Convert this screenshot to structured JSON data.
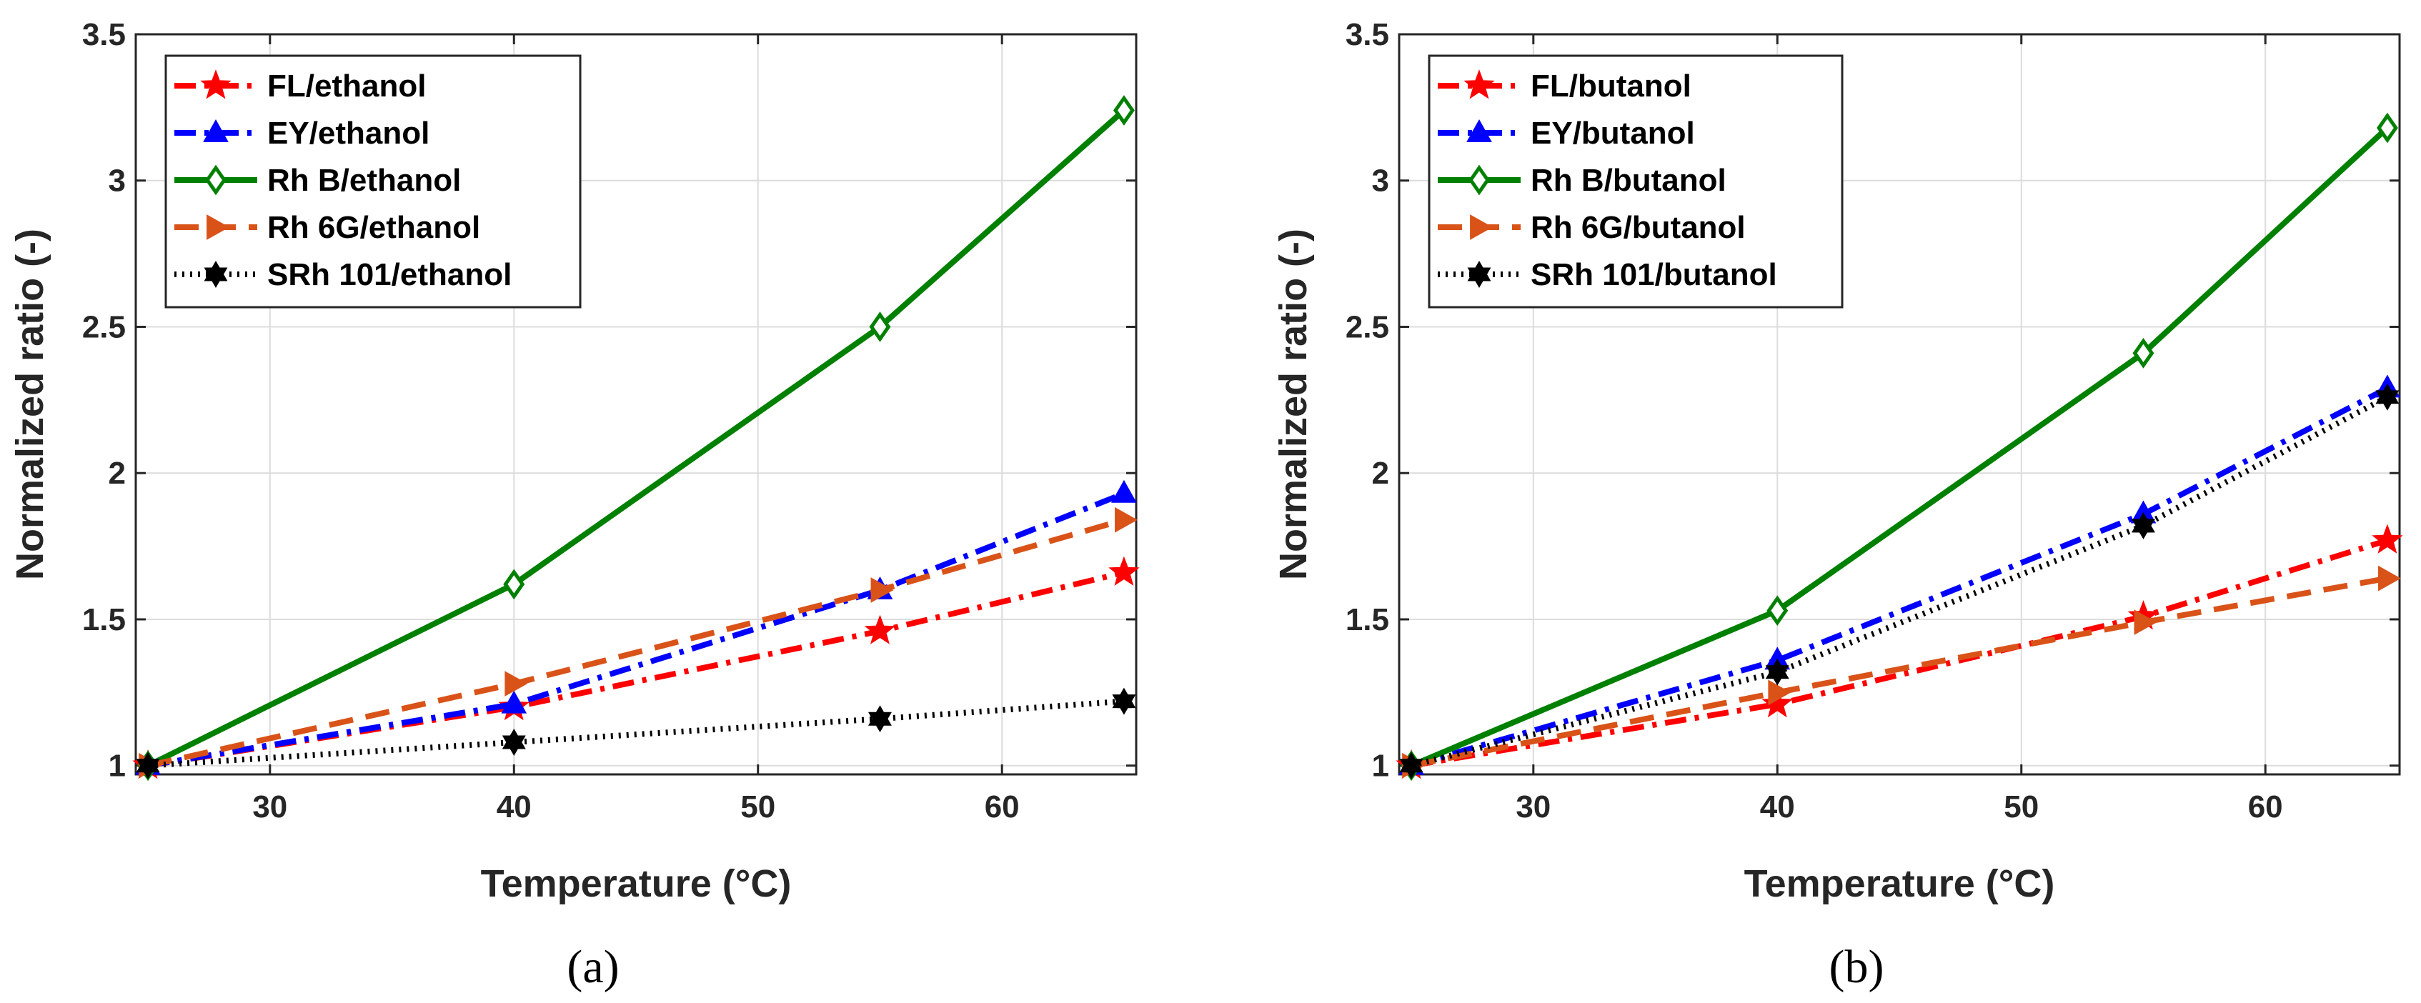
{
  "chart_data": [
    {
      "type": "line",
      "panel_label": "(a)",
      "xlabel": "Temperature (°C)",
      "ylabel": "Normalized ratio (-)",
      "xlim": [
        24.5,
        65.5
      ],
      "ylim": [
        0.97,
        3.5
      ],
      "x_ticks": [
        30,
        40,
        50,
        60
      ],
      "y_ticks": [
        1,
        1.5,
        2,
        2.5,
        3,
        3.5
      ],
      "x_tick_labels": [
        "30",
        "40",
        "50",
        "60"
      ],
      "y_tick_labels": [
        "1",
        "1.5",
        "2",
        "2.5",
        "3",
        "3.5"
      ],
      "grid": true,
      "legend_location": "top-left",
      "x": [
        25,
        40,
        55,
        65
      ],
      "series": [
        {
          "name": "FL/ethanol",
          "values": [
            1.0,
            1.2,
            1.46,
            1.66
          ],
          "color": "#ff0000",
          "dash": "dashdot",
          "marker": "star"
        },
        {
          "name": "EY/ethanol",
          "values": [
            1.0,
            1.21,
            1.6,
            1.93
          ],
          "color": "#0000ff",
          "dash": "dashdot",
          "marker": "triangle-up"
        },
        {
          "name": "Rh B/ethanol",
          "values": [
            1.0,
            1.62,
            2.5,
            3.24
          ],
          "color": "#008000",
          "dash": "solid",
          "marker": "diamond"
        },
        {
          "name": "Rh 6G/ethanol",
          "values": [
            1.0,
            1.28,
            1.6,
            1.84
          ],
          "color": "#d95319",
          "dash": "dashed",
          "marker": "triangle-right"
        },
        {
          "name": "SRh 101/ethanol",
          "values": [
            1.0,
            1.08,
            1.16,
            1.22
          ],
          "color": "#000000",
          "dash": "dotted",
          "marker": "hexagram"
        }
      ]
    },
    {
      "type": "line",
      "panel_label": "(b)",
      "xlabel": "Temperature (°C)",
      "ylabel": "Normalized ratio (-)",
      "xlim": [
        24.5,
        65.5
      ],
      "ylim": [
        0.97,
        3.5
      ],
      "x_ticks": [
        30,
        40,
        50,
        60
      ],
      "y_ticks": [
        1,
        1.5,
        2,
        2.5,
        3,
        3.5
      ],
      "x_tick_labels": [
        "30",
        "40",
        "50",
        "60"
      ],
      "y_tick_labels": [
        "1",
        "1.5",
        "2",
        "2.5",
        "3",
        "3.5"
      ],
      "grid": true,
      "legend_location": "top-left",
      "x": [
        25,
        40,
        55,
        65
      ],
      "series": [
        {
          "name": "FL/butanol",
          "values": [
            1.0,
            1.21,
            1.51,
            1.77
          ],
          "color": "#ff0000",
          "dash": "dashdot",
          "marker": "star"
        },
        {
          "name": "EY/butanol",
          "values": [
            1.0,
            1.36,
            1.86,
            2.29
          ],
          "color": "#0000ff",
          "dash": "dashdot",
          "marker": "triangle-up"
        },
        {
          "name": "Rh B/butanol",
          "values": [
            1.0,
            1.53,
            2.41,
            3.18
          ],
          "color": "#008000",
          "dash": "solid",
          "marker": "diamond"
        },
        {
          "name": "Rh 6G/butanol",
          "values": [
            1.0,
            1.25,
            1.49,
            1.64
          ],
          "color": "#d95319",
          "dash": "dashed",
          "marker": "triangle-right"
        },
        {
          "name": "SRh 101/butanol",
          "values": [
            1.0,
            1.32,
            1.82,
            2.26
          ],
          "color": "#000000",
          "dash": "dotted",
          "marker": "hexagram"
        }
      ]
    }
  ]
}
